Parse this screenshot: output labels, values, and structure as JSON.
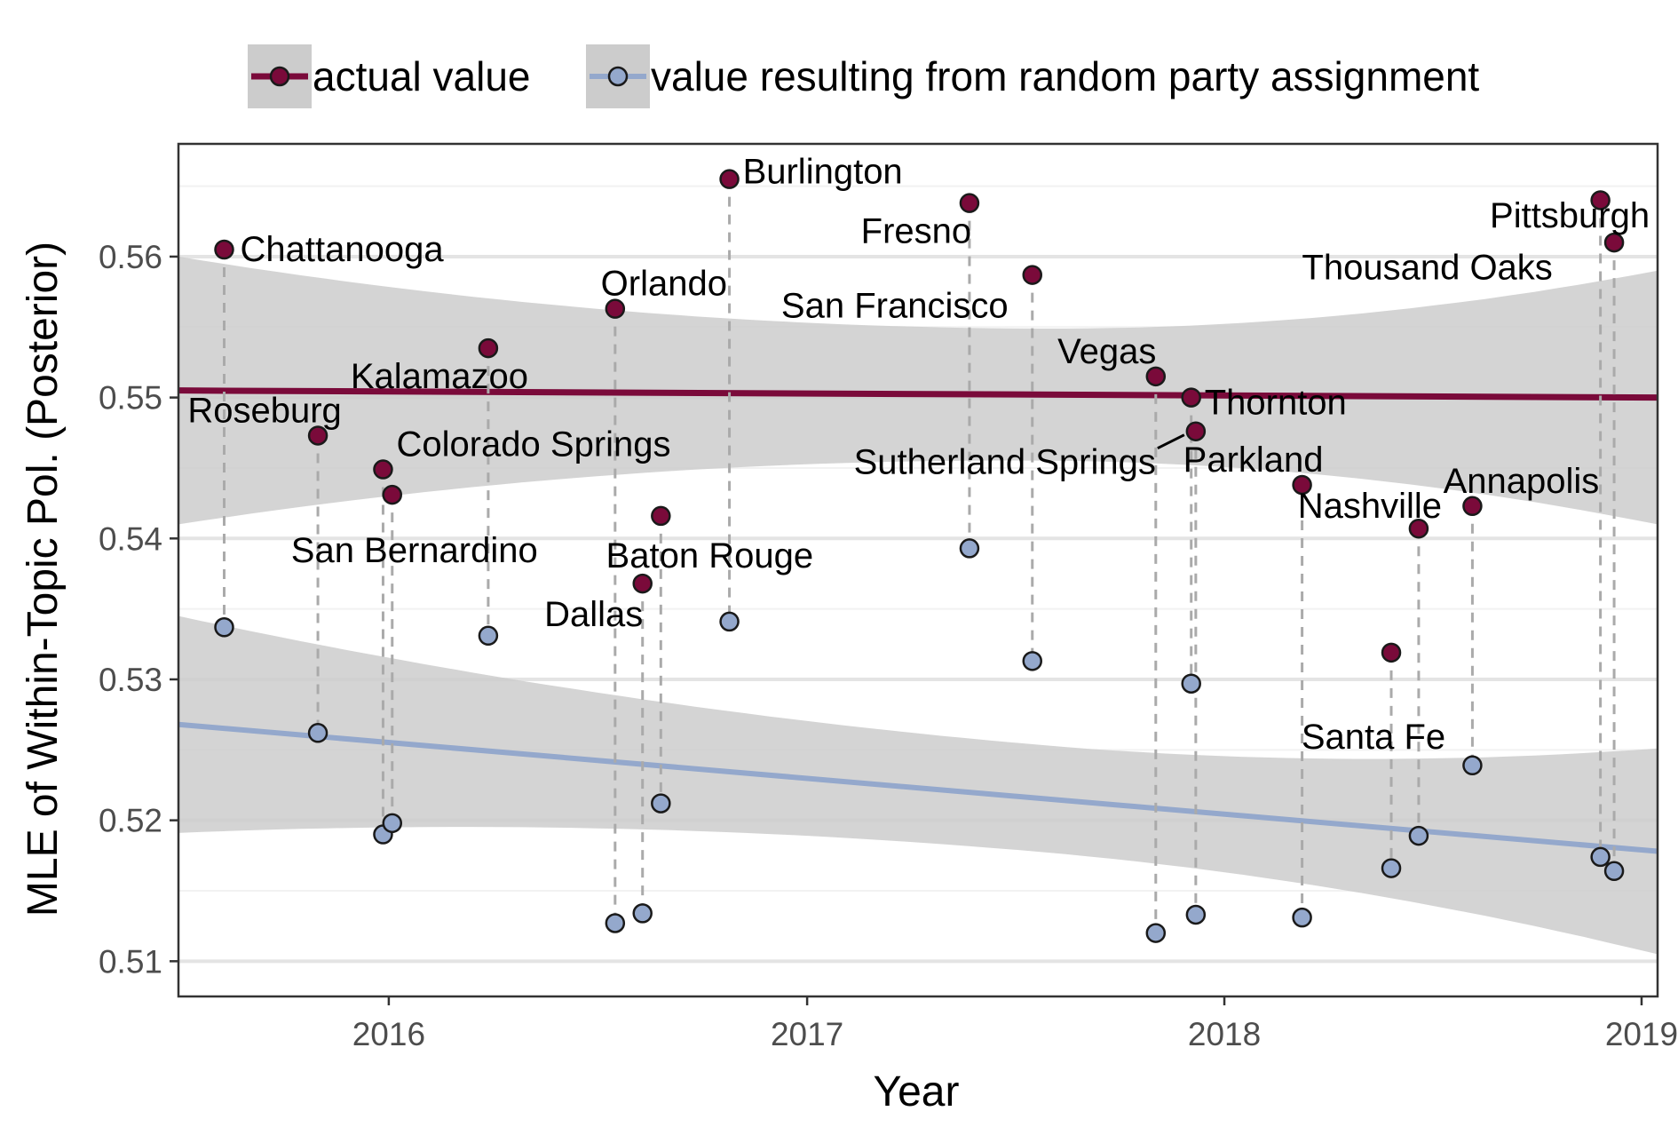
{
  "chart_data": {
    "type": "scatter",
    "xlabel": "Year",
    "ylabel": "MLE of Within-Topic Pol. (Posterior)",
    "xlim": [
      "2015-07-01",
      "2019-01-15"
    ],
    "ylim": [
      0.5075,
      0.568
    ],
    "x_ticks": [
      "2016",
      "2017",
      "2018",
      "2019"
    ],
    "y_ticks": [
      "0.51",
      "0.52",
      "0.53",
      "0.54",
      "0.55",
      "0.56"
    ],
    "grid": true,
    "legend_position": "top",
    "legend": [
      {
        "name": "actual value",
        "color": "#7a0a3a"
      },
      {
        "name": "value resulting from random party assignment",
        "color": "#94a8cc"
      }
    ],
    "band_color": "#cccccc",
    "connector_color": "#aaaaaa",
    "events": [
      {
        "label": "Chattanooga",
        "date": "2015-08-10",
        "actual": 0.5605,
        "random": 0.5337
      },
      {
        "label": "Roseburg",
        "date": "2015-10-31",
        "actual": 0.5473,
        "random": 0.5262
      },
      {
        "label": "Colorado Springs",
        "date": "2015-12-27",
        "actual": 0.5449,
        "random": 0.519
      },
      {
        "label": "San Bernardino",
        "date": "2016-01-04",
        "actual": 0.5431,
        "random": 0.5198
      },
      {
        "label": "Kalamazoo",
        "date": "2016-03-28",
        "actual": 0.5535,
        "random": 0.5331
      },
      {
        "label": "Orlando",
        "date": "2016-07-17",
        "actual": 0.5563,
        "random": 0.5127
      },
      {
        "label": "Dallas",
        "date": "2016-08-10",
        "actual": 0.5368,
        "random": 0.5134
      },
      {
        "label": "Baton Rouge",
        "date": "2016-08-26",
        "actual": 0.5416,
        "random": 0.5212
      },
      {
        "label": "Burlington",
        "date": "2016-10-25",
        "actual": 0.5655,
        "random": 0.5341
      },
      {
        "label": "Fresno",
        "date": "2017-05-23",
        "actual": 0.5638,
        "random": 0.5393
      },
      {
        "label": "San Francisco",
        "date": "2017-07-17",
        "actual": 0.5587,
        "random": 0.5313
      },
      {
        "label": "Vegas",
        "date": "2017-11-02",
        "actual": 0.5515,
        "random": 0.512
      },
      {
        "label": "Thornton",
        "date": "2017-12-03",
        "actual": 0.55,
        "random": 0.5297
      },
      {
        "label": "Sutherland Springs",
        "date": "2017-12-07",
        "actual": 0.5476,
        "random": 0.5133
      },
      {
        "label": "Parkland",
        "date": "2018-03-10",
        "actual": 0.5438,
        "random": 0.5131
      },
      {
        "label": "Santa Fe",
        "date": "2018-05-27",
        "actual": 0.5319,
        "random": 0.5166
      },
      {
        "label": "Nashville",
        "date": "2018-06-20",
        "actual": 0.5407,
        "random": 0.5189
      },
      {
        "label": "Annapolis",
        "date": "2018-08-06",
        "actual": 0.5423,
        "random": 0.5239
      },
      {
        "label": "Thousand Oaks",
        "date": "2018-11-26",
        "actual": 0.564,
        "random": 0.5174
      },
      {
        "label": "Pittsburgh",
        "date": "2018-12-08",
        "actual": 0.561,
        "random": 0.5164
      }
    ],
    "trend_lines": [
      {
        "series": "actual value",
        "x": [
          "2015-07-01",
          "2019-01-15"
        ],
        "y": [
          0.5505,
          0.55
        ],
        "band_lower": [
          0.541,
          0.541
        ],
        "band_upper": [
          0.5598,
          0.5592
        ]
      },
      {
        "series": "value resulting from random party assignment",
        "x": [
          "2015-07-01",
          "2019-01-15"
        ],
        "y": [
          0.5268,
          0.5178
        ],
        "band_lower": [
          0.5191,
          0.5105
        ],
        "band_upper": [
          0.5345,
          0.5252
        ]
      }
    ]
  }
}
